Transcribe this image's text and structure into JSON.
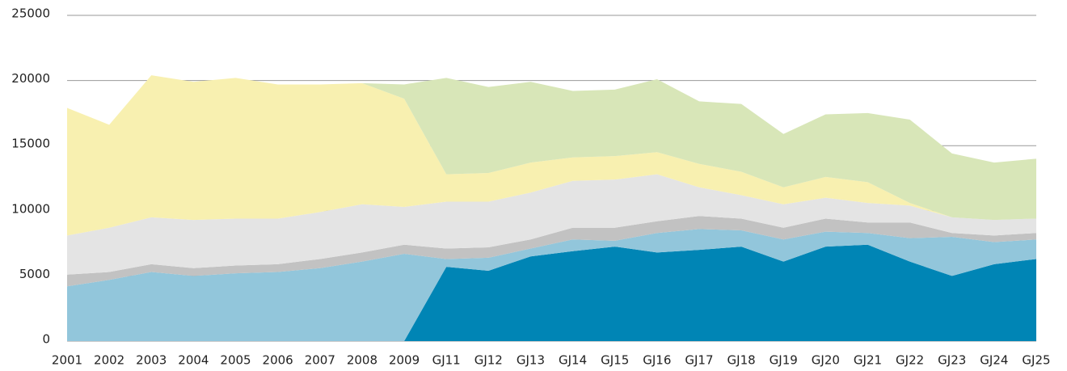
{
  "chart_data": {
    "type": "stacked_area",
    "categories": [
      "2001",
      "2002",
      "2003",
      "2004",
      "2005",
      "2006",
      "2007",
      "2008",
      "2009",
      "GJ11",
      "GJ12",
      "GJ13",
      "GJ14",
      "GJ15",
      "GJ16",
      "GJ17",
      "GJ18",
      "GJ19",
      "GJ20",
      "GJ21",
      "GJ22",
      "GJ23",
      "GJ24",
      "GJ25"
    ],
    "series": [
      {
        "color": "#0085b5",
        "values": [
          0,
          0,
          0,
          0,
          0,
          0,
          0,
          0,
          0,
          5700,
          5400,
          6500,
          6900,
          7250,
          6800,
          7000,
          7250,
          6100,
          7250,
          7400,
          6100,
          5000,
          5900,
          6300
        ]
      },
      {
        "color": "#92c6db",
        "values": [
          4200,
          4700,
          5300,
          5000,
          5200,
          5300,
          5600,
          6100,
          6700,
          600,
          1000,
          600,
          900,
          450,
          1500,
          1600,
          1250,
          1700,
          1150,
          900,
          1800,
          3000,
          1700,
          1500
        ]
      },
      {
        "color": "#c2c2c2",
        "values": [
          900,
          600,
          600,
          600,
          600,
          600,
          700,
          700,
          700,
          800,
          800,
          700,
          900,
          1000,
          900,
          1000,
          900,
          900,
          1000,
          800,
          1200,
          300,
          500,
          500
        ]
      },
      {
        "color": "#e4e4e4",
        "values": [
          3000,
          3400,
          3600,
          3700,
          3600,
          3500,
          3600,
          3700,
          2900,
          3600,
          3500,
          3600,
          3600,
          3700,
          3600,
          2200,
          1800,
          1800,
          1600,
          1500,
          1300,
          1200,
          1200,
          1100
        ]
      },
      {
        "color": "#f8f0b0",
        "values": [
          9800,
          7900,
          10900,
          10600,
          10800,
          10300,
          9800,
          9300,
          8300,
          2100,
          2200,
          2300,
          1800,
          1800,
          1700,
          1800,
          1800,
          1300,
          1600,
          1600,
          200,
          0,
          0,
          0
        ]
      },
      {
        "color": "#d8e6b8",
        "values": [
          0,
          0,
          0,
          0,
          0,
          0,
          0,
          0,
          1100,
          7400,
          6600,
          6200,
          5100,
          5100,
          5600,
          4800,
          5200,
          4100,
          4800,
          5300,
          6400,
          4900,
          4400,
          4600
        ]
      }
    ],
    "ylim": [
      0,
      25000
    ],
    "yticks": [
      0,
      5000,
      10000,
      15000,
      20000,
      25000
    ],
    "grid": true
  }
}
